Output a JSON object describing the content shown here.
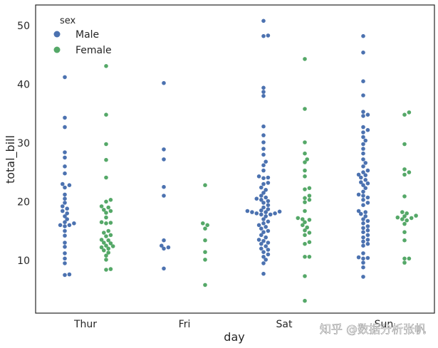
{
  "watermark": "知乎 @数据分析张帆",
  "chart_data": {
    "type": "scatter",
    "subtype": "swarm",
    "xlabel": "day",
    "ylabel": "total_bill",
    "categories": [
      "Thur",
      "Fri",
      "Sat",
      "Sun"
    ],
    "ylim": [
      1.0,
      53.5
    ],
    "yticks": [
      10,
      20,
      30,
      40,
      50
    ],
    "grid": false,
    "legend": {
      "title": "sex",
      "position": "top-left"
    },
    "series": [
      {
        "name": "Male",
        "color": "#4c72b0",
        "values": {
          "Thur": [
            7.5,
            7.6,
            9.5,
            10.3,
            11.2,
            12.3,
            13.0,
            14.2,
            15.0,
            15.8,
            16.0,
            16.0,
            16.3,
            16.5,
            17.0,
            17.5,
            18.0,
            18.4,
            18.8,
            19.2,
            19.8,
            20.5,
            21.2,
            22.4,
            22.8,
            23.0,
            24.8,
            26.0,
            27.5,
            28.4,
            32.7,
            34.3,
            41.2
          ],
          "Fri": [
            8.6,
            12.0,
            12.2,
            12.5,
            13.4,
            21.0,
            22.5,
            27.2,
            28.9,
            40.2
          ],
          "Sat": [
            7.7,
            9.5,
            10.1,
            10.6,
            11.0,
            11.4,
            11.8,
            12.0,
            12.4,
            12.8,
            13.0,
            13.3,
            13.5,
            13.9,
            14.3,
            14.8,
            15.0,
            15.4,
            15.7,
            16.0,
            16.3,
            16.6,
            17.0,
            17.5,
            17.8,
            17.8,
            18.0,
            18.0,
            18.2,
            18.2,
            18.3,
            18.4,
            18.5,
            18.7,
            19.0,
            19.4,
            19.8,
            20.1,
            20.3,
            20.5,
            20.7,
            21.0,
            21.5,
            22.0,
            22.4,
            23.0,
            23.2,
            24.0,
            24.1,
            24.3,
            25.3,
            26.2,
            26.8,
            28.0,
            29.0,
            30.1,
            31.3,
            32.8,
            38.0,
            38.7,
            39.4,
            48.2,
            48.3,
            50.8
          ],
          "Sun": [
            7.2,
            8.8,
            9.6,
            10.3,
            10.4,
            10.5,
            11.2,
            12.5,
            12.8,
            13.2,
            13.5,
            13.9,
            14.3,
            14.8,
            15.1,
            15.5,
            15.8,
            16.3,
            16.7,
            17.0,
            17.5,
            17.9,
            18.2,
            18.4,
            19.4,
            19.8,
            20.3,
            20.7,
            21.0,
            21.2,
            21.7,
            22.3,
            22.8,
            23.1,
            23.3,
            23.7,
            24.1,
            24.5,
            24.6,
            25.0,
            25.3,
            26.0,
            26.6,
            27.2,
            28.2,
            29.0,
            29.8,
            30.4,
            31.0,
            31.8,
            32.2,
            32.7,
            34.6,
            34.8,
            35.3,
            38.1,
            40.5,
            45.4,
            48.2
          ]
        }
      },
      {
        "name": "Female",
        "color": "#55a868",
        "values": {
          "Thur": [
            8.4,
            8.5,
            10.1,
            10.8,
            11.3,
            11.7,
            12.0,
            12.2,
            12.4,
            12.5,
            12.9,
            13.0,
            13.4,
            13.5,
            14.1,
            14.3,
            14.7,
            15.0,
            16.3,
            16.4,
            16.5,
            17.3,
            18.1,
            18.4,
            18.6,
            19.0,
            19.2,
            20.0,
            20.3,
            24.1,
            27.1,
            29.8,
            34.8,
            43.1
          ],
          "Fri": [
            5.8,
            10.1,
            11.4,
            13.4,
            15.4,
            16.0,
            16.3,
            22.8
          ],
          "Sat": [
            3.1,
            7.3,
            10.6,
            10.6,
            12.8,
            13.1,
            14.3,
            14.7,
            15.1,
            15.6,
            16.0,
            16.5,
            16.9,
            17.0,
            17.2,
            18.4,
            19.9,
            20.3,
            20.6,
            21.0,
            22.1,
            22.3,
            24.3,
            25.3,
            26.7,
            27.2,
            28.2,
            30.1,
            35.8,
            44.3
          ],
          "Sun": [
            9.6,
            10.3,
            10.3,
            13.4,
            14.8,
            16.2,
            16.8,
            17.0,
            17.2,
            17.3,
            17.5,
            17.6,
            18.0,
            18.2,
            20.9,
            24.6,
            25.0,
            25.5,
            29.8,
            34.8,
            35.2
          ]
        }
      }
    ]
  }
}
